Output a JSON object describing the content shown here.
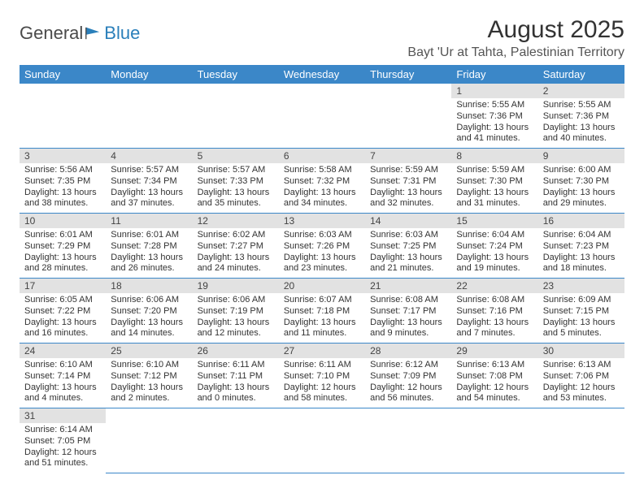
{
  "logo": {
    "text1": "General",
    "text2": "Blue"
  },
  "title": "August 2025",
  "location": "Bayt 'Ur at Tahta, Palestinian Territory",
  "colors": {
    "header_bg": "#3b87c8",
    "header_text": "#ffffff",
    "daybar_bg": "#e2e2e2",
    "row_border": "#3b87c8",
    "text": "#333333"
  },
  "weekdays": [
    "Sunday",
    "Monday",
    "Tuesday",
    "Wednesday",
    "Thursday",
    "Friday",
    "Saturday"
  ],
  "weeks": [
    [
      null,
      null,
      null,
      null,
      null,
      {
        "n": "1",
        "sr": "Sunrise: 5:55 AM",
        "ss": "Sunset: 7:36 PM",
        "d1": "Daylight: 13 hours",
        "d2": "and 41 minutes."
      },
      {
        "n": "2",
        "sr": "Sunrise: 5:55 AM",
        "ss": "Sunset: 7:36 PM",
        "d1": "Daylight: 13 hours",
        "d2": "and 40 minutes."
      }
    ],
    [
      {
        "n": "3",
        "sr": "Sunrise: 5:56 AM",
        "ss": "Sunset: 7:35 PM",
        "d1": "Daylight: 13 hours",
        "d2": "and 38 minutes."
      },
      {
        "n": "4",
        "sr": "Sunrise: 5:57 AM",
        "ss": "Sunset: 7:34 PM",
        "d1": "Daylight: 13 hours",
        "d2": "and 37 minutes."
      },
      {
        "n": "5",
        "sr": "Sunrise: 5:57 AM",
        "ss": "Sunset: 7:33 PM",
        "d1": "Daylight: 13 hours",
        "d2": "and 35 minutes."
      },
      {
        "n": "6",
        "sr": "Sunrise: 5:58 AM",
        "ss": "Sunset: 7:32 PM",
        "d1": "Daylight: 13 hours",
        "d2": "and 34 minutes."
      },
      {
        "n": "7",
        "sr": "Sunrise: 5:59 AM",
        "ss": "Sunset: 7:31 PM",
        "d1": "Daylight: 13 hours",
        "d2": "and 32 minutes."
      },
      {
        "n": "8",
        "sr": "Sunrise: 5:59 AM",
        "ss": "Sunset: 7:30 PM",
        "d1": "Daylight: 13 hours",
        "d2": "and 31 minutes."
      },
      {
        "n": "9",
        "sr": "Sunrise: 6:00 AM",
        "ss": "Sunset: 7:30 PM",
        "d1": "Daylight: 13 hours",
        "d2": "and 29 minutes."
      }
    ],
    [
      {
        "n": "10",
        "sr": "Sunrise: 6:01 AM",
        "ss": "Sunset: 7:29 PM",
        "d1": "Daylight: 13 hours",
        "d2": "and 28 minutes."
      },
      {
        "n": "11",
        "sr": "Sunrise: 6:01 AM",
        "ss": "Sunset: 7:28 PM",
        "d1": "Daylight: 13 hours",
        "d2": "and 26 minutes."
      },
      {
        "n": "12",
        "sr": "Sunrise: 6:02 AM",
        "ss": "Sunset: 7:27 PM",
        "d1": "Daylight: 13 hours",
        "d2": "and 24 minutes."
      },
      {
        "n": "13",
        "sr": "Sunrise: 6:03 AM",
        "ss": "Sunset: 7:26 PM",
        "d1": "Daylight: 13 hours",
        "d2": "and 23 minutes."
      },
      {
        "n": "14",
        "sr": "Sunrise: 6:03 AM",
        "ss": "Sunset: 7:25 PM",
        "d1": "Daylight: 13 hours",
        "d2": "and 21 minutes."
      },
      {
        "n": "15",
        "sr": "Sunrise: 6:04 AM",
        "ss": "Sunset: 7:24 PM",
        "d1": "Daylight: 13 hours",
        "d2": "and 19 minutes."
      },
      {
        "n": "16",
        "sr": "Sunrise: 6:04 AM",
        "ss": "Sunset: 7:23 PM",
        "d1": "Daylight: 13 hours",
        "d2": "and 18 minutes."
      }
    ],
    [
      {
        "n": "17",
        "sr": "Sunrise: 6:05 AM",
        "ss": "Sunset: 7:22 PM",
        "d1": "Daylight: 13 hours",
        "d2": "and 16 minutes."
      },
      {
        "n": "18",
        "sr": "Sunrise: 6:06 AM",
        "ss": "Sunset: 7:20 PM",
        "d1": "Daylight: 13 hours",
        "d2": "and 14 minutes."
      },
      {
        "n": "19",
        "sr": "Sunrise: 6:06 AM",
        "ss": "Sunset: 7:19 PM",
        "d1": "Daylight: 13 hours",
        "d2": "and 12 minutes."
      },
      {
        "n": "20",
        "sr": "Sunrise: 6:07 AM",
        "ss": "Sunset: 7:18 PM",
        "d1": "Daylight: 13 hours",
        "d2": "and 11 minutes."
      },
      {
        "n": "21",
        "sr": "Sunrise: 6:08 AM",
        "ss": "Sunset: 7:17 PM",
        "d1": "Daylight: 13 hours",
        "d2": "and 9 minutes."
      },
      {
        "n": "22",
        "sr": "Sunrise: 6:08 AM",
        "ss": "Sunset: 7:16 PM",
        "d1": "Daylight: 13 hours",
        "d2": "and 7 minutes."
      },
      {
        "n": "23",
        "sr": "Sunrise: 6:09 AM",
        "ss": "Sunset: 7:15 PM",
        "d1": "Daylight: 13 hours",
        "d2": "and 5 minutes."
      }
    ],
    [
      {
        "n": "24",
        "sr": "Sunrise: 6:10 AM",
        "ss": "Sunset: 7:14 PM",
        "d1": "Daylight: 13 hours",
        "d2": "and 4 minutes."
      },
      {
        "n": "25",
        "sr": "Sunrise: 6:10 AM",
        "ss": "Sunset: 7:12 PM",
        "d1": "Daylight: 13 hours",
        "d2": "and 2 minutes."
      },
      {
        "n": "26",
        "sr": "Sunrise: 6:11 AM",
        "ss": "Sunset: 7:11 PM",
        "d1": "Daylight: 13 hours",
        "d2": "and 0 minutes."
      },
      {
        "n": "27",
        "sr": "Sunrise: 6:11 AM",
        "ss": "Sunset: 7:10 PM",
        "d1": "Daylight: 12 hours",
        "d2": "and 58 minutes."
      },
      {
        "n": "28",
        "sr": "Sunrise: 6:12 AM",
        "ss": "Sunset: 7:09 PM",
        "d1": "Daylight: 12 hours",
        "d2": "and 56 minutes."
      },
      {
        "n": "29",
        "sr": "Sunrise: 6:13 AM",
        "ss": "Sunset: 7:08 PM",
        "d1": "Daylight: 12 hours",
        "d2": "and 54 minutes."
      },
      {
        "n": "30",
        "sr": "Sunrise: 6:13 AM",
        "ss": "Sunset: 7:06 PM",
        "d1": "Daylight: 12 hours",
        "d2": "and 53 minutes."
      }
    ],
    [
      {
        "n": "31",
        "sr": "Sunrise: 6:14 AM",
        "ss": "Sunset: 7:05 PM",
        "d1": "Daylight: 12 hours",
        "d2": "and 51 minutes."
      },
      null,
      null,
      null,
      null,
      null,
      null
    ]
  ]
}
